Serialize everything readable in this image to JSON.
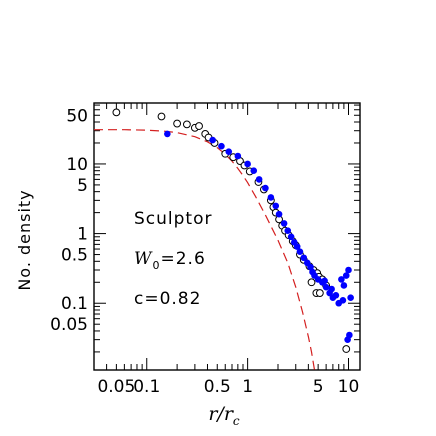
{
  "chart_data": {
    "type": "scatter",
    "xlabel": "r",
    "xlabel_sub": "c",
    "xlabel_sep": "/",
    "ylabel": "No. density",
    "xscale": "log",
    "yscale": "log",
    "xlim": [
      0.03,
      13
    ],
    "ylim": [
      0.011,
      75
    ],
    "x_tick_labels": [
      {
        "value": 0.05,
        "label": "0.05"
      },
      {
        "value": 0.1,
        "label": "0.1"
      },
      {
        "value": 0.5,
        "label": "0.5"
      },
      {
        "value": 1,
        "label": "1"
      },
      {
        "value": 5,
        "label": "5"
      },
      {
        "value": 10,
        "label": "10"
      }
    ],
    "y_tick_labels": [
      {
        "value": 50,
        "label": "50"
      },
      {
        "value": 10,
        "label": "10"
      },
      {
        "value": 5,
        "label": "5"
      },
      {
        "value": 1,
        "label": "1"
      },
      {
        "value": 0.5,
        "label": "0.5"
      },
      {
        "value": 0.1,
        "label": "0.1"
      },
      {
        "value": 0.05,
        "label": "0.05"
      }
    ],
    "annotations": {
      "name": "Sculptor",
      "w_symbol": "W",
      "w_sub": "0",
      "w_value": "=2.6",
      "c_text": "c=0.82"
    },
    "series": [
      {
        "marker": "open-circle",
        "color": "#000000",
        "points": [
          [
            0.05,
            55
          ],
          [
            0.14,
            48
          ],
          [
            0.2,
            38
          ],
          [
            0.25,
            37
          ],
          [
            0.3,
            33
          ],
          [
            0.33,
            35
          ],
          [
            0.38,
            27
          ],
          [
            0.41,
            24
          ],
          [
            0.47,
            20
          ],
          [
            0.6,
            14
          ],
          [
            0.72,
            12.5
          ],
          [
            0.84,
            11
          ],
          [
            0.93,
            9.5
          ],
          [
            1.05,
            7.8
          ],
          [
            1.28,
            5.5
          ],
          [
            1.45,
            4.3
          ],
          [
            1.7,
            3.0
          ],
          [
            1.8,
            2.4
          ],
          [
            1.9,
            2.0
          ],
          [
            2.05,
            1.6
          ],
          [
            2.2,
            1.3
          ],
          [
            2.35,
            1.1
          ],
          [
            2.55,
            0.95
          ],
          [
            2.8,
            0.78
          ],
          [
            3.0,
            0.68
          ],
          [
            3.3,
            0.5
          ],
          [
            3.6,
            0.42
          ],
          [
            4.1,
            0.34
          ],
          [
            4.5,
            0.3
          ],
          [
            4.9,
            0.27
          ],
          [
            5.1,
            0.24
          ],
          [
            5.5,
            0.22
          ],
          [
            4.3,
            0.2
          ],
          [
            4.8,
            0.14
          ],
          [
            5.2,
            0.14
          ],
          [
            6.0,
            0.18
          ],
          [
            9.5,
            0.022
          ]
        ]
      },
      {
        "marker": "filled-circle",
        "color": "#0000ff",
        "points": [
          [
            0.16,
            27
          ],
          [
            0.45,
            22
          ],
          [
            0.55,
            18
          ],
          [
            0.65,
            15
          ],
          [
            0.8,
            13
          ],
          [
            1.0,
            10
          ],
          [
            1.15,
            8
          ],
          [
            1.3,
            6
          ],
          [
            1.5,
            4.5
          ],
          [
            1.7,
            3.3
          ],
          [
            1.9,
            2.5
          ],
          [
            2.05,
            1.9
          ],
          [
            2.3,
            1.4
          ],
          [
            2.5,
            1.1
          ],
          [
            2.7,
            0.9
          ],
          [
            2.9,
            0.75
          ],
          [
            3.1,
            0.65
          ],
          [
            3.3,
            0.55
          ],
          [
            3.6,
            0.45
          ],
          [
            3.9,
            0.38
          ],
          [
            4.2,
            0.33
          ],
          [
            4.4,
            0.28
          ],
          [
            4.6,
            0.25
          ],
          [
            5.0,
            0.22
          ],
          [
            5.5,
            0.2
          ],
          [
            6.0,
            0.17
          ],
          [
            6.5,
            0.14
          ],
          [
            7.0,
            0.12
          ],
          [
            7.5,
            0.13
          ],
          [
            8.0,
            0.1
          ],
          [
            8.5,
            0.22
          ],
          [
            9.0,
            0.18
          ],
          [
            9.5,
            0.25
          ],
          [
            10.0,
            0.3
          ],
          [
            10.5,
            0.12
          ],
          [
            9.8,
            0.03
          ],
          [
            10.2,
            0.035
          ],
          [
            5.8,
            0.21
          ],
          [
            6.8,
            0.16
          ],
          [
            8.8,
            0.11
          ]
        ]
      }
    ],
    "fit_curve": {
      "style": "dashed",
      "color": "#d42020",
      "points": [
        [
          0.03,
          31
        ],
        [
          0.06,
          31
        ],
        [
          0.1,
          30.5
        ],
        [
          0.15,
          29.5
        ],
        [
          0.2,
          28.2
        ],
        [
          0.3,
          24.6
        ],
        [
          0.4,
          20.8
        ],
        [
          0.5,
          17.1
        ],
        [
          0.6,
          13.8
        ],
        [
          0.7,
          11.0
        ],
        [
          0.8,
          8.6
        ],
        [
          0.9,
          6.8
        ],
        [
          1.0,
          5.4
        ],
        [
          1.2,
          3.4
        ],
        [
          1.5,
          1.85
        ],
        [
          2.0,
          0.8
        ],
        [
          2.5,
          0.38
        ],
        [
          3.0,
          0.17
        ],
        [
          3.5,
          0.075
        ],
        [
          4.0,
          0.033
        ],
        [
          4.3,
          0.02
        ],
        [
          4.6,
          0.011
        ]
      ]
    }
  }
}
